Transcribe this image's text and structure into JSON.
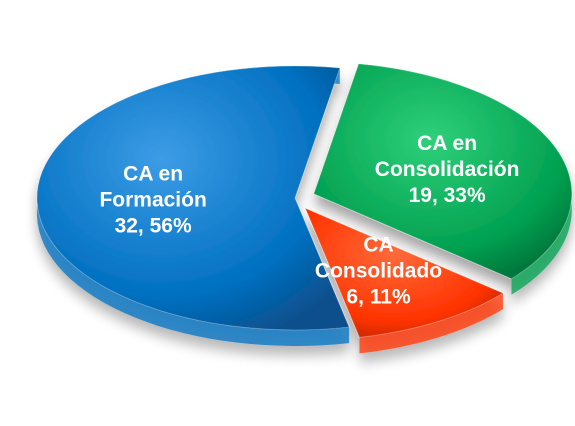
{
  "chart_data": {
    "type": "pie",
    "title": "",
    "slices": [
      {
        "name": "CA en Formación",
        "label_lines": [
          "CA en",
          "Formación",
          "32, 56%"
        ],
        "value": 32,
        "percent": 56,
        "color": "#0070C0",
        "exploded": false
      },
      {
        "name": "CA en Consolidación",
        "label_lines": [
          "CA en",
          "Consolidación",
          "19, 33%"
        ],
        "value": 19,
        "percent": 33,
        "color": "#00A050",
        "exploded": true
      },
      {
        "name": "CA Consolidado",
        "label_lines": [
          "CA",
          "Consolidado",
          "6, 11%"
        ],
        "value": 6,
        "percent": 11,
        "color": "#FF3300",
        "exploded": true
      }
    ]
  }
}
